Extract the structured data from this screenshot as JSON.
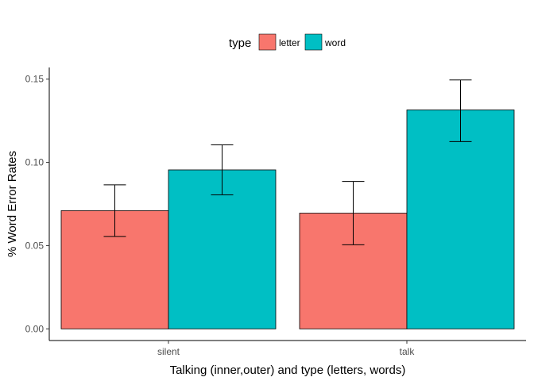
{
  "chart_data": {
    "type": "bar",
    "categories": [
      "silent",
      "talk"
    ],
    "series": [
      {
        "name": "letter",
        "color": "#f8766d",
        "values": [
          0.071,
          0.0695
        ],
        "error_low": [
          0.0555,
          0.0505
        ],
        "error_high": [
          0.0865,
          0.0885
        ]
      },
      {
        "name": "word",
        "color": "#00bfc4",
        "values": [
          0.0955,
          0.1315
        ],
        "error_low": [
          0.0805,
          0.1125
        ],
        "error_high": [
          0.1105,
          0.1495
        ]
      }
    ],
    "xlabel": "Talking (inner,outer) and type (letters, words)",
    "ylabel": "% Word Error Rates",
    "ylim": [
      -0.007,
      0.157
    ],
    "yticks": [
      "0.00",
      "0.05",
      "0.10",
      "0.15"
    ],
    "legend": {
      "title": "type",
      "position": "top"
    },
    "grid": false
  }
}
